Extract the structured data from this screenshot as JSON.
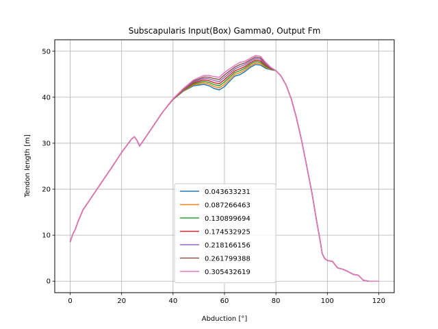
{
  "chart_data": {
    "type": "line",
    "title": "Subscapularis Input(Box) Gamma0, Output Fm",
    "xlabel": "Abduction [°]",
    "ylabel": "Tendon length [m]",
    "xlim": [
      -6,
      126
    ],
    "ylim": [
      -2.5,
      52.5
    ],
    "xticks": [
      0,
      20,
      40,
      60,
      80,
      100,
      120
    ],
    "yticks": [
      0,
      10,
      20,
      30,
      40,
      50
    ],
    "grid": true,
    "legend_position": "lower center",
    "base": {
      "x": [
        0,
        1,
        2,
        3,
        5,
        8,
        12,
        16,
        20,
        24,
        25,
        26,
        27,
        29,
        32,
        36,
        40,
        44,
        48,
        52,
        54,
        56,
        58,
        60,
        62,
        64,
        66,
        68,
        70,
        72,
        74,
        76,
        78,
        80,
        82,
        84,
        86,
        88,
        90,
        92,
        94,
        96,
        97,
        98,
        99,
        100,
        102,
        104,
        106,
        108,
        110,
        112,
        114,
        116,
        118,
        120
      ],
      "y": [
        8.5,
        10.2,
        11.3,
        12.9,
        15.5,
        18.0,
        21.3,
        24.6,
        28.0,
        31.0,
        31.4,
        30.6,
        29.4,
        31.0,
        33.5,
        36.8,
        39.5,
        41.3,
        42.5,
        42.8,
        42.5,
        41.9,
        41.6,
        42.3,
        43.5,
        44.6,
        44.9,
        45.6,
        46.5,
        47.1,
        47.0,
        46.3,
        46.0,
        45.8,
        44.6,
        42.6,
        39.6,
        35.5,
        30.6,
        25.0,
        19.2,
        12.5,
        9.5,
        6.0,
        4.9,
        4.5,
        4.3,
        2.9,
        2.6,
        2.1,
        1.5,
        1.3,
        0.2,
        0.0,
        0.0,
        0.0
      ]
    },
    "series": [
      {
        "name": "0.043633231",
        "color": "#1f77b4",
        "k": 0.0
      },
      {
        "name": "0.087266463",
        "color": "#ff7f0e",
        "k": 0.14
      },
      {
        "name": "0.130899694",
        "color": "#2ca02c",
        "k": 0.28
      },
      {
        "name": "0.174532925",
        "color": "#d62728",
        "k": 0.42
      },
      {
        "name": "0.218166156",
        "color": "#9467bd",
        "k": 0.57
      },
      {
        "name": "0.261799388",
        "color": "#8c564b",
        "k": 0.71
      },
      {
        "name": "0.305432619",
        "color": "#e377c2",
        "k": 0.86
      }
    ],
    "spread": {
      "x": [
        0,
        38,
        42,
        46,
        50,
        54,
        56,
        58,
        60,
        62,
        64,
        66,
        68,
        70,
        72,
        74,
        76,
        78,
        80,
        120
      ],
      "y": [
        0,
        0.0,
        0.4,
        1.0,
        1.9,
        2.6,
        3.0,
        3.2,
        3.6,
        3.1,
        2.7,
        3.1,
        2.6,
        2.3,
        2.3,
        2.2,
        1.5,
        0.6,
        0.0,
        0
      ]
    }
  }
}
